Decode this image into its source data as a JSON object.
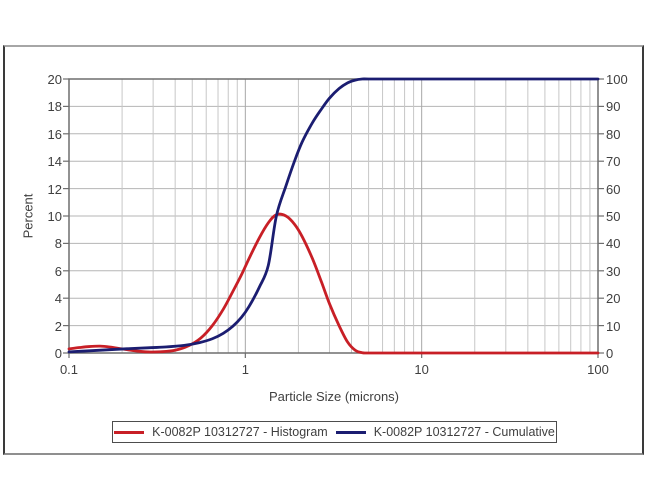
{
  "chart_data": {
    "type": "line",
    "title": "",
    "xlabel": "Particle Size (microns)",
    "ylabel_left": "Percent",
    "x_scale": "log",
    "x_range": [
      0.1,
      100
    ],
    "x_ticks": {
      "values": [
        0.1,
        1,
        10,
        100
      ],
      "labels": [
        "0.1",
        "1",
        "10",
        "100"
      ]
    },
    "left_axis": {
      "min": 0,
      "max": 20,
      "ticks": [
        0,
        2,
        4,
        6,
        8,
        10,
        12,
        14,
        16,
        18,
        20
      ]
    },
    "right_axis": {
      "min": 0,
      "max": 100,
      "ticks": [
        0,
        10,
        20,
        30,
        40,
        50,
        60,
        70,
        80,
        90,
        100
      ]
    },
    "grid": {
      "horizontal_values": [
        2,
        4,
        6,
        8,
        10,
        12,
        14,
        16,
        18
      ],
      "minor_color": "#c7c7c7",
      "major_color": "#a8a8a8",
      "horizontal_color": "#b5b5b5",
      "axis_color": "#6e6e6e"
    },
    "legend_position": "bottom",
    "series": [
      {
        "name": "K-0082P 10312727 - Histogram",
        "color": "#c81f26",
        "axis": "left",
        "points": [
          [
            0.1,
            0.3
          ],
          [
            0.115,
            0.4
          ],
          [
            0.13,
            0.47
          ],
          [
            0.15,
            0.5
          ],
          [
            0.17,
            0.44
          ],
          [
            0.2,
            0.3
          ],
          [
            0.24,
            0.15
          ],
          [
            0.28,
            0.08
          ],
          [
            0.33,
            0.09
          ],
          [
            0.4,
            0.2
          ],
          [
            0.48,
            0.55
          ],
          [
            0.56,
            1.1
          ],
          [
            0.65,
            2.0
          ],
          [
            0.75,
            3.2
          ],
          [
            0.85,
            4.5
          ],
          [
            0.95,
            5.7
          ],
          [
            1.05,
            6.9
          ],
          [
            1.2,
            8.4
          ],
          [
            1.35,
            9.5
          ],
          [
            1.5,
            10.1
          ],
          [
            1.7,
            10.0
          ],
          [
            1.9,
            9.4
          ],
          [
            2.1,
            8.5
          ],
          [
            2.4,
            6.9
          ],
          [
            2.7,
            5.2
          ],
          [
            3.0,
            3.6
          ],
          [
            3.4,
            2.0
          ],
          [
            3.8,
            0.8
          ],
          [
            4.2,
            0.2
          ],
          [
            4.6,
            0.02
          ],
          [
            5.0,
            0
          ],
          [
            7,
            0
          ],
          [
            10,
            0
          ],
          [
            30,
            0
          ],
          [
            100,
            0
          ]
        ]
      },
      {
        "name": "K-0082P 10312727 - Cumulative",
        "color": "#1b1d71",
        "axis": "right",
        "points": [
          [
            0.1,
            0.4
          ],
          [
            0.13,
            0.8
          ],
          [
            0.17,
            1.2
          ],
          [
            0.22,
            1.6
          ],
          [
            0.28,
            1.9
          ],
          [
            0.35,
            2.2
          ],
          [
            0.45,
            2.8
          ],
          [
            0.55,
            3.8
          ],
          [
            0.65,
            5.2
          ],
          [
            0.75,
            7.2
          ],
          [
            0.85,
            9.8
          ],
          [
            0.95,
            13
          ],
          [
            1.05,
            17
          ],
          [
            1.2,
            24
          ],
          [
            1.35,
            32
          ],
          [
            1.5,
            50
          ],
          [
            1.7,
            61
          ],
          [
            1.9,
            70
          ],
          [
            2.1,
            77
          ],
          [
            2.4,
            84
          ],
          [
            2.7,
            89
          ],
          [
            3.0,
            93
          ],
          [
            3.4,
            96.5
          ],
          [
            3.8,
            98.6
          ],
          [
            4.2,
            99.6
          ],
          [
            4.6,
            100
          ],
          [
            5,
            100
          ],
          [
            7,
            100
          ],
          [
            10,
            100
          ],
          [
            30,
            100
          ],
          [
            100,
            100
          ]
        ]
      }
    ]
  }
}
